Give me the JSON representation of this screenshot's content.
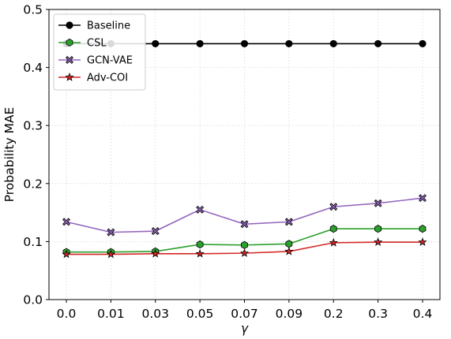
{
  "chart_data": {
    "type": "line",
    "title": "",
    "xlabel": "γ",
    "ylabel": "Probability MAE",
    "categories": [
      "0.0",
      "0.01",
      "0.03",
      "0.05",
      "0.07",
      "0.09",
      "0.2",
      "0.3",
      "0.4"
    ],
    "ylim": [
      0.0,
      0.5
    ],
    "yticks": [
      "0.0",
      "0.1",
      "0.2",
      "0.3",
      "0.4",
      "0.5"
    ],
    "grid": true,
    "legend_position": "top-left",
    "series": [
      {
        "name": "Baseline",
        "color": "#000000",
        "marker": "circle",
        "values": [
          0.441,
          0.441,
          0.441,
          0.441,
          0.441,
          0.441,
          0.441,
          0.441,
          0.441
        ]
      },
      {
        "name": "CSL",
        "color": "#2ca02c",
        "marker": "hexagon",
        "values": [
          0.082,
          0.082,
          0.083,
          0.095,
          0.094,
          0.096,
          0.122,
          0.122,
          0.122
        ]
      },
      {
        "name": "GCN-VAE",
        "color": "#9467bd",
        "marker": "x-filled",
        "values": [
          0.134,
          0.116,
          0.118,
          0.155,
          0.13,
          0.134,
          0.16,
          0.166,
          0.175
        ]
      },
      {
        "name": "Adv-COI",
        "color": "#d62728",
        "marker": "star",
        "values": [
          0.078,
          0.078,
          0.079,
          0.079,
          0.08,
          0.083,
          0.098,
          0.099,
          0.099
        ]
      }
    ]
  }
}
